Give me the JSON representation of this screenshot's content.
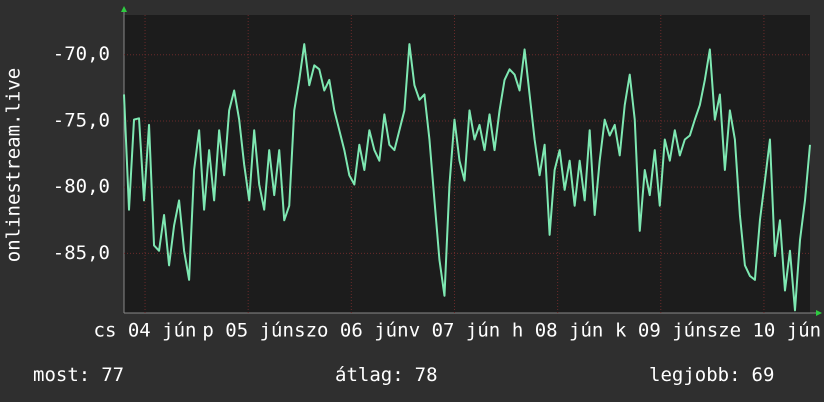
{
  "chart_data": {
    "type": "line",
    "y_label": "onlinestream.live",
    "series": [
      {
        "name": "onlinestream.live",
        "color": "#7ee8b2",
        "values": [
          -73.0,
          -81.7,
          -74.9,
          -74.8,
          -81.0,
          -75.3,
          -84.4,
          -84.8,
          -82.1,
          -85.9,
          -82.9,
          -81.0,
          -84.8,
          -87.0,
          -78.7,
          -75.7,
          -81.7,
          -77.2,
          -81.0,
          -75.7,
          -79.1,
          -74.2,
          -72.7,
          -74.9,
          -78.3,
          -81.0,
          -75.7,
          -79.8,
          -81.7,
          -77.2,
          -80.6,
          -77.2,
          -82.5,
          -81.4,
          -74.2,
          -71.9,
          -69.2,
          -72.3,
          -70.8,
          -71.1,
          -72.7,
          -71.9,
          -74.2,
          -75.7,
          -77.2,
          -79.1,
          -79.8,
          -76.8,
          -78.7,
          -75.7,
          -77.2,
          -78.0,
          -74.5,
          -76.8,
          -77.2,
          -75.7,
          -74.2,
          -69.2,
          -72.3,
          -73.4,
          -73.0,
          -76.4,
          -81.0,
          -85.5,
          -88.2,
          -79.8,
          -74.9,
          -78.0,
          -79.5,
          -74.2,
          -76.4,
          -75.3,
          -77.2,
          -74.5,
          -77.2,
          -74.2,
          -71.9,
          -71.1,
          -71.5,
          -72.7,
          -69.6,
          -73.0,
          -76.4,
          -79.1,
          -76.8,
          -83.6,
          -78.7,
          -77.2,
          -80.2,
          -78.0,
          -81.4,
          -78.0,
          -81.0,
          -75.7,
          -82.1,
          -78.0,
          -74.9,
          -76.1,
          -75.3,
          -77.6,
          -73.8,
          -71.5,
          -74.9,
          -83.3,
          -78.7,
          -80.6,
          -77.2,
          -81.4,
          -76.4,
          -78.0,
          -75.7,
          -77.6,
          -76.4,
          -76.1,
          -74.9,
          -73.8,
          -71.9,
          -69.6,
          -74.9,
          -73.0,
          -78.7,
          -74.2,
          -76.4,
          -82.1,
          -85.9,
          -86.7,
          -87.0,
          -82.5,
          -79.5,
          -76.4,
          -85.2,
          -82.5,
          -87.8,
          -84.8,
          -89.3,
          -84.0,
          -81.0,
          -76.8
        ]
      }
    ],
    "xlim": [
      0,
      137
    ],
    "xticks": [
      {
        "value": 4.2,
        "label": "cs 04 jún"
      },
      {
        "value": 24.8,
        "label": "p 05 jún"
      },
      {
        "value": 45.4,
        "label": "szo 06 jún"
      },
      {
        "value": 66,
        "label": "v 07 jún"
      },
      {
        "value": 86.6,
        "label": "h 08 jún"
      },
      {
        "value": 107.2,
        "label": "k 09 jún"
      },
      {
        "value": 127.8,
        "label": "sze 10 jún"
      }
    ],
    "ylim": [
      -89.5,
      -67
    ],
    "yticks": [
      {
        "value": -70,
        "label": "-70,0"
      },
      {
        "value": -75,
        "label": "-75,0"
      },
      {
        "value": -80,
        "label": "-80,0"
      },
      {
        "value": -85,
        "label": "-85,0"
      }
    ],
    "grid": true,
    "footer": [
      {
        "label": "most:",
        "value": 77
      },
      {
        "label": "átlag:",
        "value": 78
      },
      {
        "label": "legjobb:",
        "value": 69
      }
    ]
  }
}
